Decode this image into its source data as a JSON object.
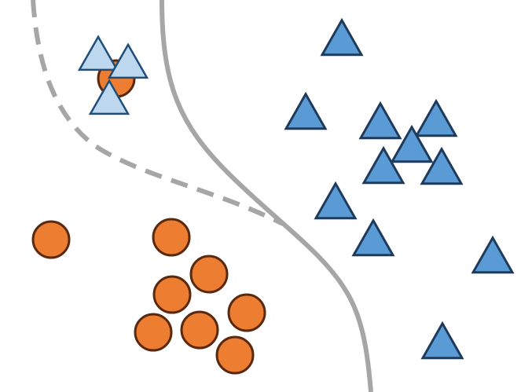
{
  "diagram": {
    "colors": {
      "circle_fill": "#ED7D31",
      "circle_stroke": "#5A2A10",
      "triangle_fill": "#5B9BD5",
      "triangle_stroke": "#1F3B5C",
      "light_triangle_fill": "#BDD7EE",
      "light_triangle_stroke": "#1F4E79",
      "solid_boundary": "#A6A6A6",
      "dashed_boundary": "#A6A6A6"
    },
    "shapes": {
      "circle_icon": "circle-icon",
      "triangle_icon": "triangle-icon"
    }
  }
}
